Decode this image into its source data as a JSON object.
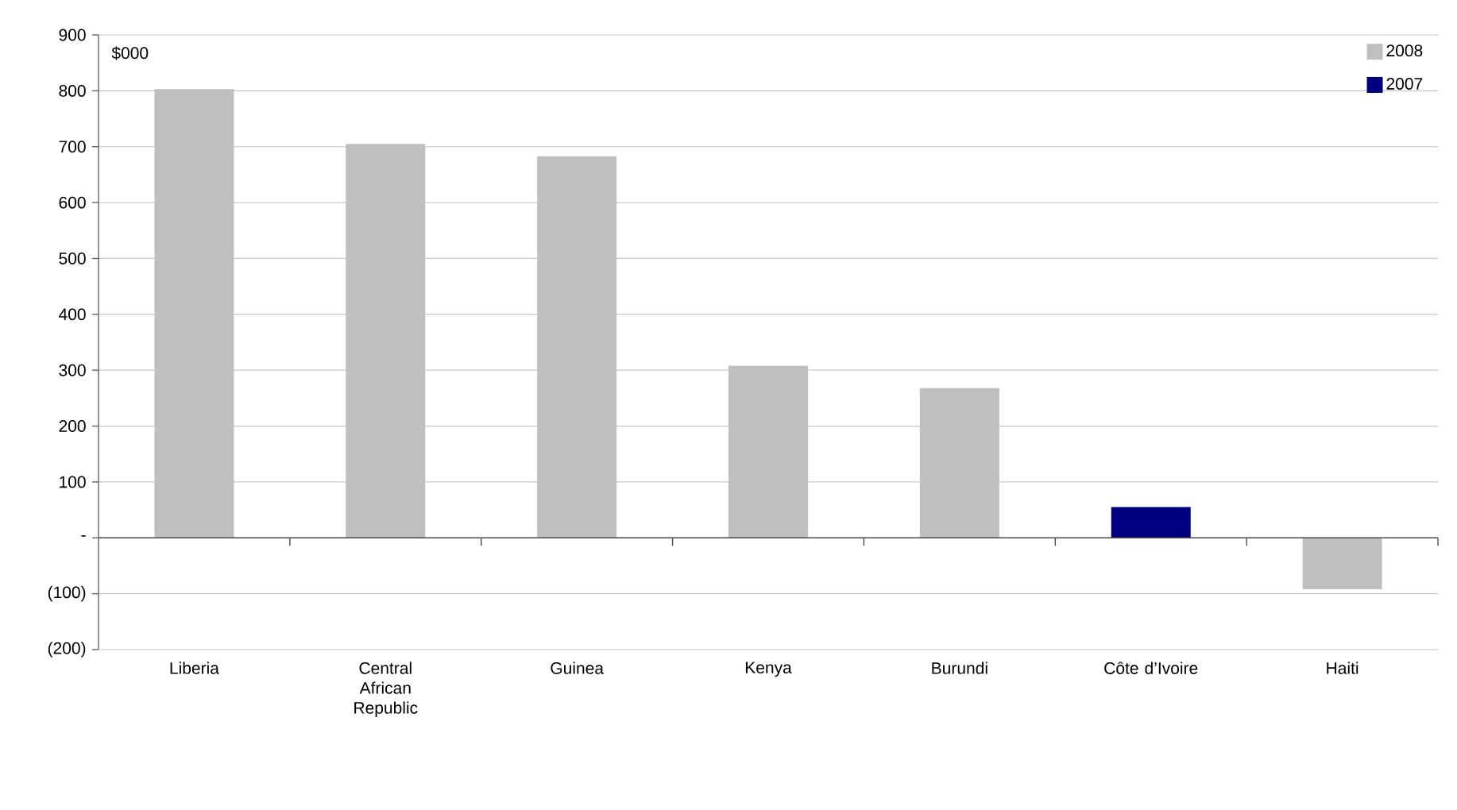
{
  "chart_data": {
    "type": "bar",
    "ylabel": "$000",
    "categories": [
      "Liberia",
      "Central African Republic",
      "Guinea",
      "Kenya",
      "Burundi",
      "Côte d’Ivoire",
      "Haiti"
    ],
    "series": [
      {
        "name": "2008",
        "color": "#bfbfbf",
        "values": [
          803,
          705,
          683,
          308,
          268,
          null,
          -92
        ]
      },
      {
        "name": "2007",
        "color": "#000080",
        "values": [
          null,
          null,
          null,
          null,
          null,
          55,
          null
        ]
      }
    ],
    "ylim": [
      -200,
      900
    ],
    "yticks": [
      {
        "value": -200,
        "label": "(200)"
      },
      {
        "value": -100,
        "label": "(100)"
      },
      {
        "value": 0,
        "label": "-"
      },
      100,
      200,
      300,
      400,
      500,
      600,
      700,
      800,
      900
    ],
    "grid": "y",
    "legend": "top right"
  }
}
